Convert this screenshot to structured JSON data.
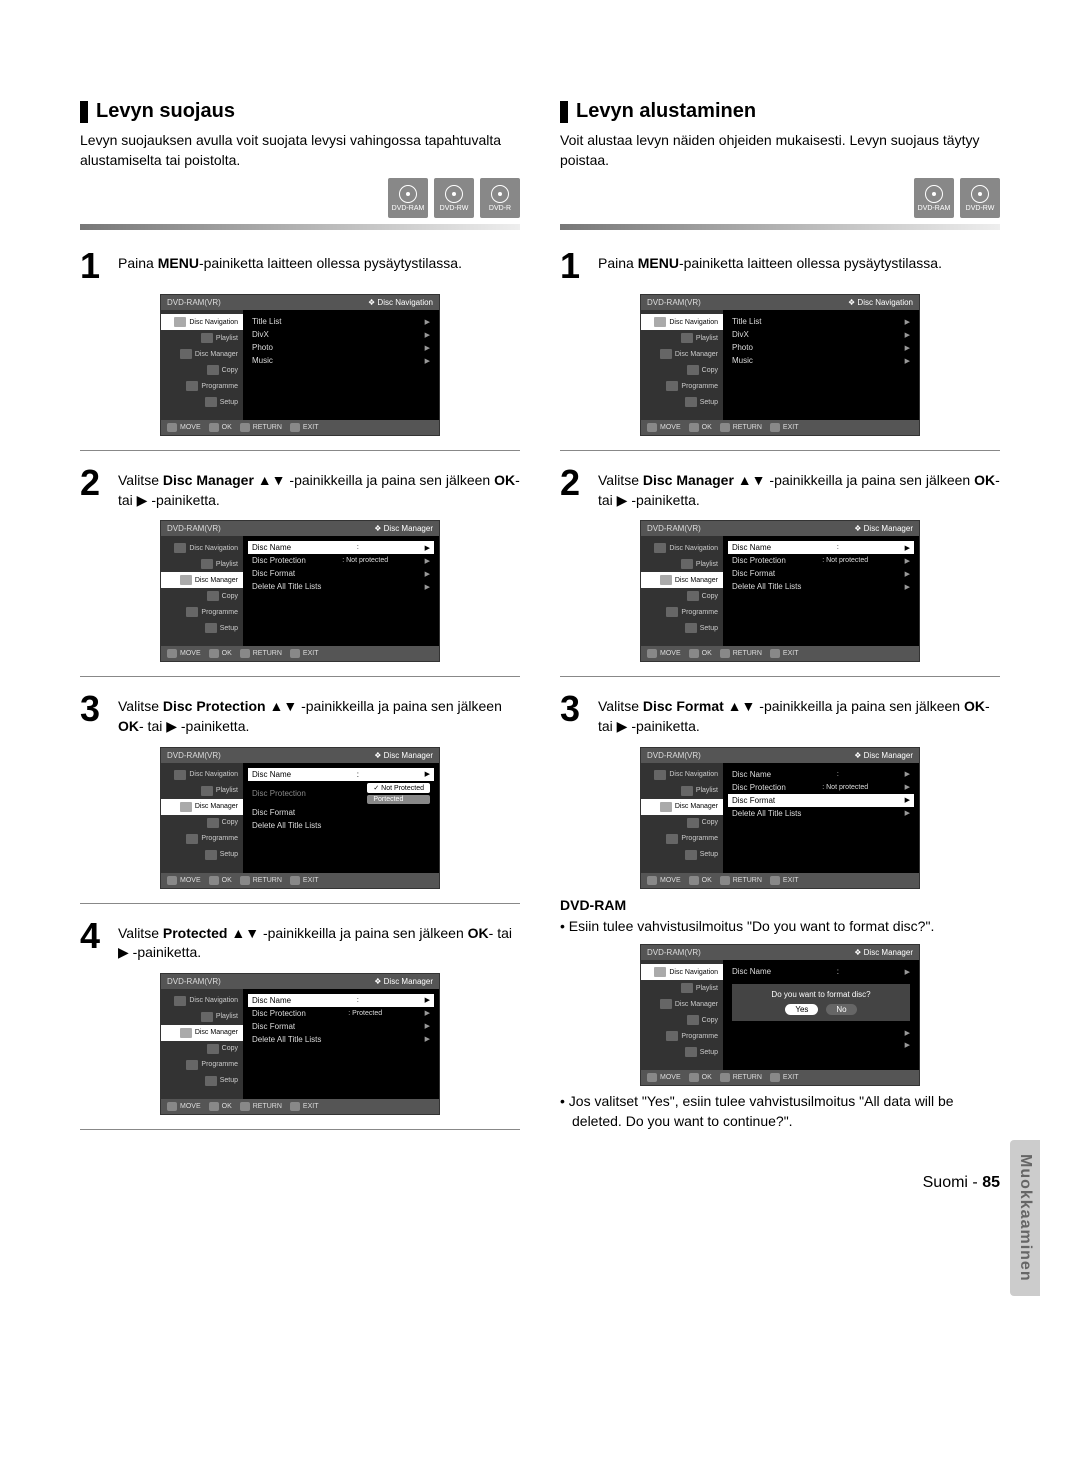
{
  "side_tab": "Muokkaaminen",
  "footer": {
    "lang": "Suomi",
    "sep": " - ",
    "page": "85"
  },
  "left": {
    "title": "Levyn suojaus",
    "intro": "Levyn suojauksen avulla voit suojata levysi vahingossa tapahtuvalta alustamiselta tai poistolta.",
    "disc_icons": [
      "DVD-RAM",
      "DVD-RW",
      "DVD-R"
    ],
    "steps": [
      {
        "num": "1",
        "text_pre": "Paina ",
        "bold1": "MENU",
        "text_post": "-painiketta laitteen ollessa pysäytysti­lassa."
      },
      {
        "num": "2",
        "text_pre": "Valitse ",
        "bold1": "Disc Manager",
        "text_mid": " ▲▼ -painikkeilla ja paina sen jälkeen ",
        "bold2": "OK",
        "text_post": "- tai ▶ -painiketta."
      },
      {
        "num": "3",
        "text_pre": "Valitse ",
        "bold1": "Disc Protection",
        "text_mid": " ▲▼ -painikkeilla ja paina sen jälkeen ",
        "bold2": "OK",
        "text_post": "- tai ▶ -painiketta."
      },
      {
        "num": "4",
        "text_pre": "Valitse ",
        "bold1": "Protected",
        "text_mid": " ▲▼ -painikkeilla ja paina sen jälkeen ",
        "bold2": "OK",
        "text_post": "- tai ▶ -painiketta."
      }
    ],
    "menus": {
      "header_type": "DVD-RAM(VR)",
      "side": [
        "Disc Navigation",
        "Playlist",
        "Disc Manager",
        "Copy",
        "Programme",
        "Setup"
      ],
      "footer": [
        {
          "icon": "m",
          "label": "MOVE"
        },
        {
          "icon": "ok",
          "label": "OK"
        },
        {
          "icon": "r",
          "label": "RETURN"
        },
        {
          "icon": "e",
          "label": "EXIT"
        }
      ],
      "m1": {
        "hr": "Disc Navigation",
        "side_hl": 0,
        "rows": [
          [
            "Title List",
            "",
            "▶"
          ],
          [
            "DivX",
            "",
            "▶"
          ],
          [
            "Photo",
            "",
            "▶"
          ],
          [
            "Music",
            "",
            "▶"
          ]
        ]
      },
      "m2": {
        "hr": "Disc Manager",
        "side_hl": 2,
        "rows": [
          [
            "Disc Name",
            ":",
            "▶"
          ],
          [
            "Disc Protection",
            ": Not protected",
            "▶"
          ],
          [
            "Disc Format",
            "",
            "▶"
          ],
          [
            "Delete All Title Lists",
            "",
            "▶"
          ]
        ],
        "row_hl": 0
      },
      "m3": {
        "hr": "Disc Manager",
        "side_hl": 2,
        "rows": [
          [
            "Disc Name",
            ":",
            "▶"
          ],
          [
            "Disc Protection",
            "",
            ""
          ],
          [
            "Disc Format",
            "",
            ""
          ],
          [
            "Delete All Title Lists",
            "",
            ""
          ]
        ],
        "row_hl": 0,
        "protect_options": [
          "Not Protected",
          "Portected"
        ]
      },
      "m4": {
        "hr": "Disc Manager",
        "side_hl": 2,
        "rows": [
          [
            "Disc Name",
            ":",
            "▶"
          ],
          [
            "Disc Protection",
            ": Protected",
            "▶"
          ],
          [
            "Disc Format",
            "",
            "▶"
          ],
          [
            "Delete All Title Lists",
            "",
            "▶"
          ]
        ],
        "row_hl": 0
      }
    }
  },
  "right": {
    "title": "Levyn alustaminen",
    "intro": "Voit alustaa levyn näiden ohjeiden mukaisesti. Levyn suojaus täytyy poistaa.",
    "disc_icons": [
      "DVD-RAM",
      "DVD-RW"
    ],
    "steps": [
      {
        "num": "1",
        "text_pre": "Paina ",
        "bold1": "MENU",
        "text_post": "-painiketta laitteen ollessa pysäytystilassa."
      },
      {
        "num": "2",
        "text_pre": "Valitse ",
        "bold1": "Disc Manager",
        "text_mid": " ▲▼ -painikkeilla ja paina sen jälkeen ",
        "bold2": "OK",
        "text_post": "- tai ▶ -painiketta."
      },
      {
        "num": "3",
        "text_pre": "Valitse ",
        "bold1": "Disc Format",
        "text_mid": " ▲▼ -painikkeilla ja paina sen jälkeen ",
        "bold2": "OK",
        "text_post": "- tai ▶ -painiketta."
      }
    ],
    "sub_head": "DVD-RAM",
    "bullet1": "• Esiin tulee vahvistusilmoitus \"Do you want to format disc?\".",
    "bullet2_pre": "• Jos valitset \"",
    "bullet2_bold": "Yes",
    "bullet2_post": "\", esiin tulee vahvistusilmoitus \"All data will be deleted. Do you want to contin­ue?\".",
    "menus": {
      "header_type": "DVD-RAM(VR)",
      "side": [
        "Disc Navigation",
        "Playlist",
        "Disc Manager",
        "Copy",
        "Programme",
        "Setup"
      ],
      "footer": [
        {
          "icon": "m",
          "label": "MOVE"
        },
        {
          "icon": "ok",
          "label": "OK"
        },
        {
          "icon": "r",
          "label": "RETURN"
        },
        {
          "icon": "e",
          "label": "EXIT"
        }
      ],
      "m1": {
        "hr": "Disc Navigation",
        "side_hl": 0,
        "rows": [
          [
            "Title List",
            "",
            "▶"
          ],
          [
            "DivX",
            "",
            "▶"
          ],
          [
            "Photo",
            "",
            "▶"
          ],
          [
            "Music",
            "",
            "▶"
          ]
        ]
      },
      "m2": {
        "hr": "Disc Manager",
        "side_hl": 2,
        "rows": [
          [
            "Disc Name",
            ":",
            "▶"
          ],
          [
            "Disc Protection",
            ": Not protected",
            "▶"
          ],
          [
            "Disc Format",
            "",
            "▶"
          ],
          [
            "Delete All Title Lists",
            "",
            "▶"
          ]
        ],
        "row_hl": 0
      },
      "m3": {
        "hr": "Disc Manager",
        "side_hl": 2,
        "rows": [
          [
            "Disc Name",
            ":",
            "▶"
          ],
          [
            "Disc Protection",
            ": Not protected",
            "▶"
          ],
          [
            "Disc Format",
            "",
            "▶"
          ],
          [
            "Delete All Title Lists",
            "",
            "▶"
          ]
        ],
        "row_hl": 2
      },
      "m4": {
        "hr": "Disc Manager",
        "side_hl": 0,
        "dialog": "Do you want to format disc?",
        "btns": [
          "Yes",
          "No"
        ],
        "rows": [
          [
            "Disc Name",
            ":",
            "▶"
          ],
          [
            "",
            "",
            "▶"
          ],
          [
            "",
            "",
            "▶"
          ]
        ]
      }
    }
  },
  "colors": {
    "disc_icon_bg": "#888888",
    "menu_bg": "#000000",
    "menu_side": "#333333",
    "menu_hl": "#ffffff",
    "menu_header": "#555555"
  }
}
